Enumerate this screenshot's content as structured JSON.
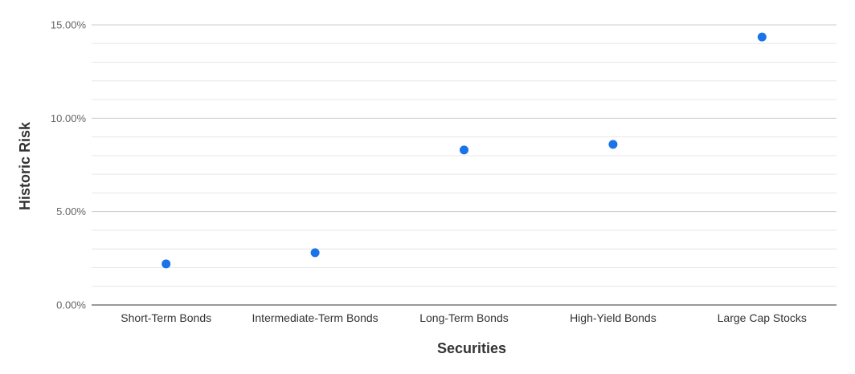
{
  "chart_data": {
    "type": "scatter",
    "title": "",
    "xlabel": "Securities",
    "ylabel": "Historic Risk",
    "categories": [
      "Short-Term Bonds",
      "Intermediate-Term Bonds",
      "Long-Term Bonds",
      "High-Yield Bonds",
      "Large Cap Stocks"
    ],
    "series": [
      {
        "values": [
          2.2,
          2.8,
          8.3,
          8.6,
          14.35
        ]
      }
    ],
    "ylim": [
      0,
      15
    ],
    "yticks": [
      0,
      5,
      10,
      15
    ],
    "ytick_labels": [
      "0.00%",
      "5.00%",
      "10.00%",
      "15.00%"
    ],
    "grid": true,
    "colors": {
      "point": "#1a73e8",
      "major_grid": "#cccccc",
      "minor_grid": "#e6e6e6",
      "baseline": "#333333"
    }
  }
}
